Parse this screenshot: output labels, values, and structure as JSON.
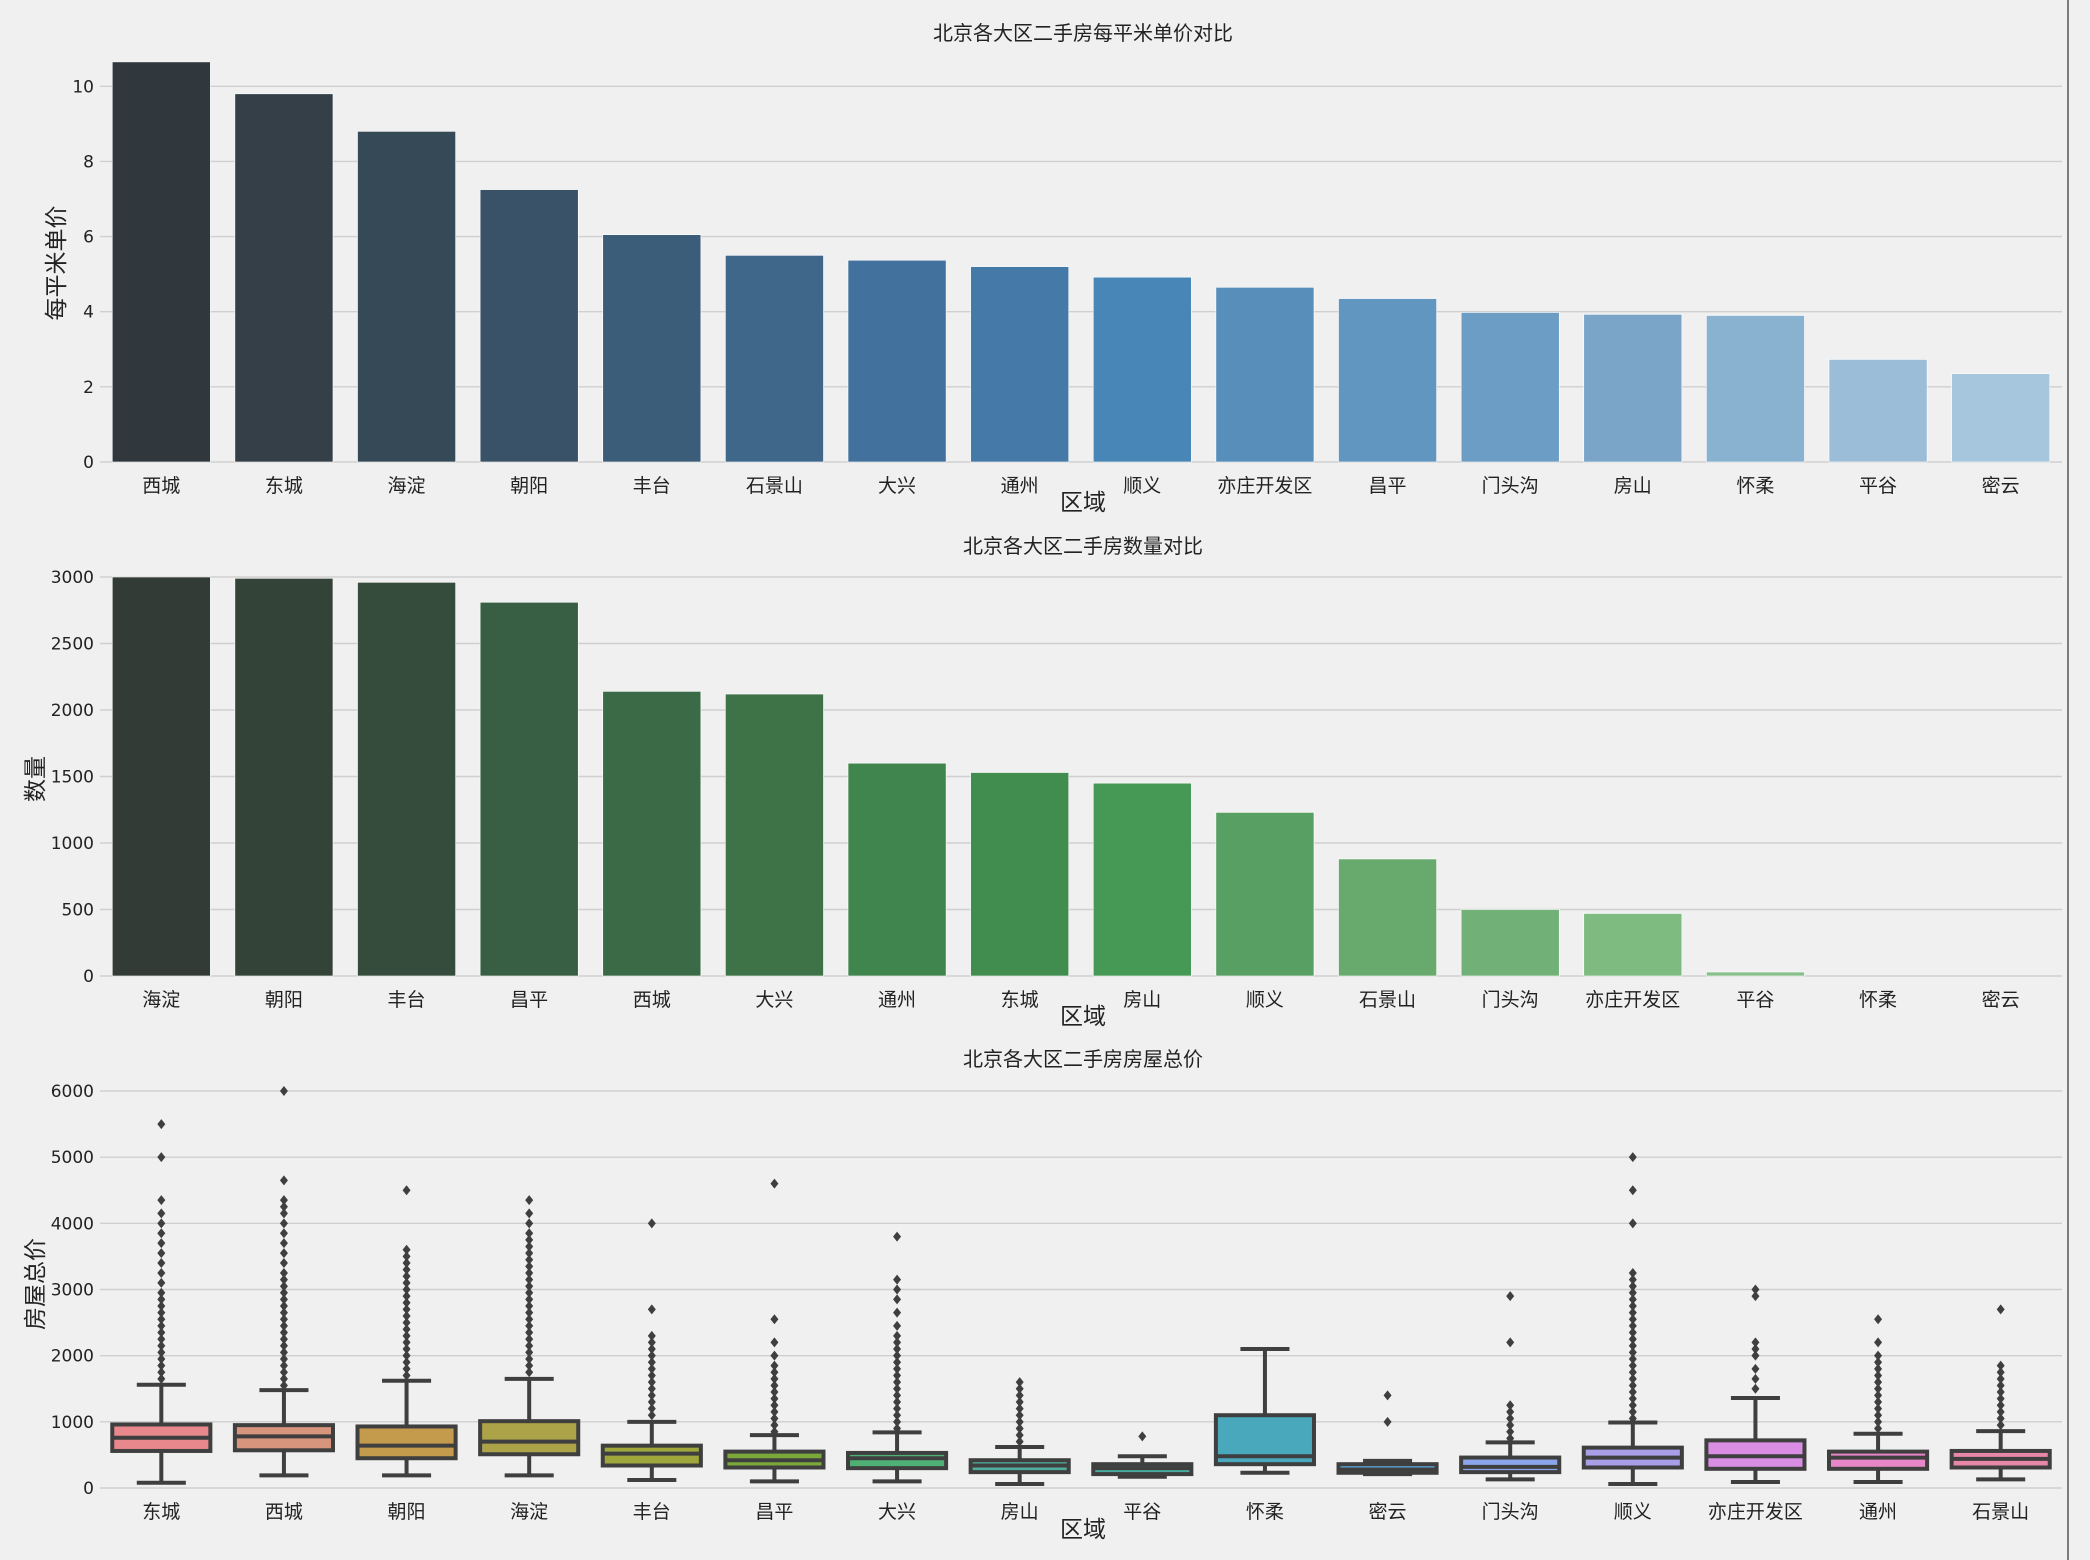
{
  "chart_data": [
    {
      "type": "bar",
      "title": "北京各大区二手房每平米单价对比",
      "xlabel": "区域",
      "ylabel": "每平米单价",
      "ylim": [
        0,
        10.7
      ],
      "yticks": [
        0,
        2,
        4,
        6,
        8,
        10
      ],
      "grid": true,
      "categories": [
        "西城",
        "东城",
        "海淀",
        "朝阳",
        "丰台",
        "石景山",
        "大兴",
        "通州",
        "顺义",
        "亦庄开发区",
        "昌平",
        "门头沟",
        "房山",
        "怀柔",
        "平谷",
        "密云"
      ],
      "values": [
        10.65,
        9.8,
        8.8,
        7.25,
        6.05,
        5.5,
        5.37,
        5.2,
        4.92,
        4.65,
        4.35,
        3.98,
        3.93,
        3.9,
        2.73,
        2.35
      ],
      "colors": [
        "#31383d",
        "#343f48",
        "#364957",
        "#395267",
        "#3b5d7a",
        "#3e678a",
        "#41719c",
        "#4479a8",
        "#4786b6",
        "#578fba",
        "#6196c0",
        "#6b9dc5",
        "#7aa5c8",
        "#89b2d1",
        "#9bbdd7",
        "#a6c6dd"
      ]
    },
    {
      "type": "bar",
      "title": "北京各大区二手房数量对比",
      "xlabel": "区域",
      "ylabel": "数量",
      "ylim": [
        0,
        3000
      ],
      "yticks": [
        0,
        500,
        1000,
        1500,
        2000,
        2500,
        3000
      ],
      "grid": true,
      "categories": [
        "海淀",
        "朝阳",
        "丰台",
        "昌平",
        "西城",
        "大兴",
        "通州",
        "东城",
        "房山",
        "顺义",
        "石景山",
        "门头沟",
        "亦庄开发区",
        "平谷",
        "怀柔",
        "密云"
      ],
      "values": [
        3000,
        2990,
        2960,
        2810,
        2140,
        2120,
        1600,
        1530,
        1450,
        1230,
        880,
        500,
        470,
        30,
        0,
        0
      ],
      "colors": [
        "#333b36",
        "#334337",
        "#354b3b",
        "#385e43",
        "#3b6a46",
        "#3d7347",
        "#41854e",
        "#418c4f",
        "#469955",
        "#589f63",
        "#68aa6d",
        "#71b076",
        "#7ebb81",
        "#88c08b",
        "#92c795",
        "#9ccd9f"
      ]
    },
    {
      "type": "box",
      "title": "北京各大区二手房房屋总价",
      "xlabel": "区域",
      "ylabel": "房屋总价",
      "ylim": [
        0,
        6000
      ],
      "yticks": [
        0,
        1000,
        2000,
        3000,
        4000,
        5000,
        6000
      ],
      "grid": true,
      "categories": [
        "东城",
        "西城",
        "朝阳",
        "海淀",
        "丰台",
        "昌平",
        "大兴",
        "房山",
        "平谷",
        "怀柔",
        "密云",
        "门头沟",
        "顺义",
        "亦庄开发区",
        "通州",
        "石景山"
      ],
      "colors": [
        "#e8888c",
        "#d8957e",
        "#c49a4c",
        "#aca248",
        "#9ea63c",
        "#7aa839",
        "#4fb075",
        "#4eae9b",
        "#47ac9f",
        "#49a8bc",
        "#5ba6d6",
        "#8ba6ea",
        "#a99ee8",
        "#d98ee4",
        "#e787c8",
        "#e888a8"
      ],
      "boxes": [
        {
          "whislo": 80,
          "q1": 560,
          "med": 760,
          "q3": 960,
          "whishi": 1560,
          "fliers": [
            1650,
            1750,
            1850,
            1950,
            2050,
            2150,
            2250,
            2350,
            2450,
            2550,
            2650,
            2750,
            2850,
            2950,
            3100,
            3250,
            3400,
            3550,
            3700,
            3850,
            4000,
            4150,
            4350,
            5000,
            5500
          ]
        },
        {
          "whislo": 190,
          "q1": 570,
          "med": 780,
          "q3": 950,
          "whishi": 1480,
          "fliers": [
            1550,
            1650,
            1750,
            1850,
            1950,
            2050,
            2150,
            2250,
            2350,
            2450,
            2550,
            2650,
            2750,
            2850,
            2950,
            3050,
            3150,
            3250,
            3400,
            3550,
            3700,
            3850,
            4000,
            4150,
            4250,
            4350,
            4650,
            6000
          ]
        },
        {
          "whislo": 190,
          "q1": 450,
          "med": 640,
          "q3": 930,
          "whishi": 1620,
          "fliers": [
            1700,
            1800,
            1900,
            2000,
            2100,
            2200,
            2300,
            2400,
            2500,
            2600,
            2700,
            2800,
            2900,
            3000,
            3100,
            3200,
            3300,
            3400,
            3500,
            3600,
            4500
          ]
        },
        {
          "whislo": 190,
          "q1": 510,
          "med": 700,
          "q3": 1010,
          "whishi": 1650,
          "fliers": [
            1750,
            1850,
            1950,
            2050,
            2150,
            2250,
            2350,
            2450,
            2550,
            2650,
            2750,
            2850,
            2950,
            3050,
            3150,
            3250,
            3350,
            3450,
            3550,
            3650,
            3750,
            3850,
            4000,
            4150,
            4350
          ]
        },
        {
          "whislo": 120,
          "q1": 340,
          "med": 520,
          "q3": 640,
          "whishi": 1000,
          "fliers": [
            1100,
            1200,
            1300,
            1400,
            1500,
            1600,
            1700,
            1800,
            1900,
            2000,
            2100,
            2200,
            2300,
            2700,
            4000
          ]
        },
        {
          "whislo": 100,
          "q1": 310,
          "med": 420,
          "q3": 550,
          "whishi": 800,
          "fliers": [
            850,
            950,
            1050,
            1150,
            1250,
            1350,
            1450,
            1550,
            1650,
            1750,
            1850,
            2000,
            2200,
            2550,
            4600
          ]
        },
        {
          "whislo": 100,
          "q1": 300,
          "med": 450,
          "q3": 530,
          "whishi": 840,
          "fliers": [
            900,
            1000,
            1100,
            1200,
            1300,
            1400,
            1500,
            1600,
            1700,
            1800,
            1900,
            2000,
            2100,
            2200,
            2300,
            2450,
            2650,
            2850,
            3000,
            3150,
            3800
          ]
        },
        {
          "whislo": 60,
          "q1": 240,
          "med": 340,
          "q3": 420,
          "whishi": 620,
          "fliers": [
            700,
            800,
            900,
            1000,
            1100,
            1200,
            1300,
            1400,
            1500,
            1600
          ]
        },
        {
          "whislo": 170,
          "q1": 210,
          "med": 300,
          "q3": 360,
          "whishi": 480,
          "fliers": [
            780
          ]
        },
        {
          "whislo": 230,
          "q1": 360,
          "med": 480,
          "q3": 1100,
          "whishi": 2100,
          "fliers": []
        },
        {
          "whislo": 210,
          "q1": 230,
          "med": 280,
          "q3": 360,
          "whishi": 410,
          "fliers": [
            1000,
            1400
          ]
        },
        {
          "whislo": 130,
          "q1": 240,
          "med": 320,
          "q3": 460,
          "whishi": 690,
          "fliers": [
            750,
            850,
            950,
            1050,
            1150,
            1250,
            2200,
            2900
          ]
        },
        {
          "whislo": 60,
          "q1": 310,
          "med": 460,
          "q3": 610,
          "whishi": 990,
          "fliers": [
            1050,
            1150,
            1250,
            1350,
            1450,
            1550,
            1650,
            1750,
            1850,
            1950,
            2050,
            2150,
            2250,
            2350,
            2450,
            2550,
            2650,
            2750,
            2850,
            2950,
            3050,
            3150,
            3250,
            4000,
            4500,
            5000
          ]
        },
        {
          "whislo": 90,
          "q1": 290,
          "med": 480,
          "q3": 720,
          "whishi": 1360,
          "fliers": [
            1500,
            1650,
            1800,
            2000,
            2100,
            2200,
            2900,
            3000
          ]
        },
        {
          "whislo": 90,
          "q1": 290,
          "med": 460,
          "q3": 550,
          "whishi": 820,
          "fliers": [
            900,
            1000,
            1100,
            1200,
            1300,
            1400,
            1500,
            1600,
            1700,
            1800,
            1900,
            2000,
            2200,
            2550
          ]
        },
        {
          "whislo": 130,
          "q1": 310,
          "med": 440,
          "q3": 560,
          "whishi": 860,
          "fliers": [
            950,
            1050,
            1150,
            1250,
            1350,
            1450,
            1550,
            1650,
            1750,
            1850,
            2700
          ]
        }
      ]
    }
  ]
}
